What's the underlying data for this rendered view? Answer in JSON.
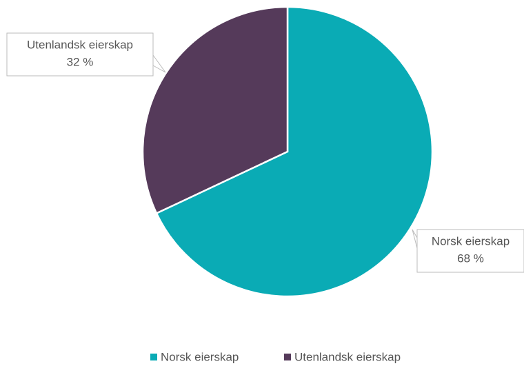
{
  "chart_data": {
    "type": "pie",
    "categories": [
      "Norsk eierskap",
      "Utenlandsk eierskap"
    ],
    "values": [
      68,
      32
    ],
    "value_labels": [
      "68 %",
      "32 %"
    ],
    "colors": [
      "#0aabb5",
      "#553a5a"
    ],
    "legend": "bottom"
  }
}
